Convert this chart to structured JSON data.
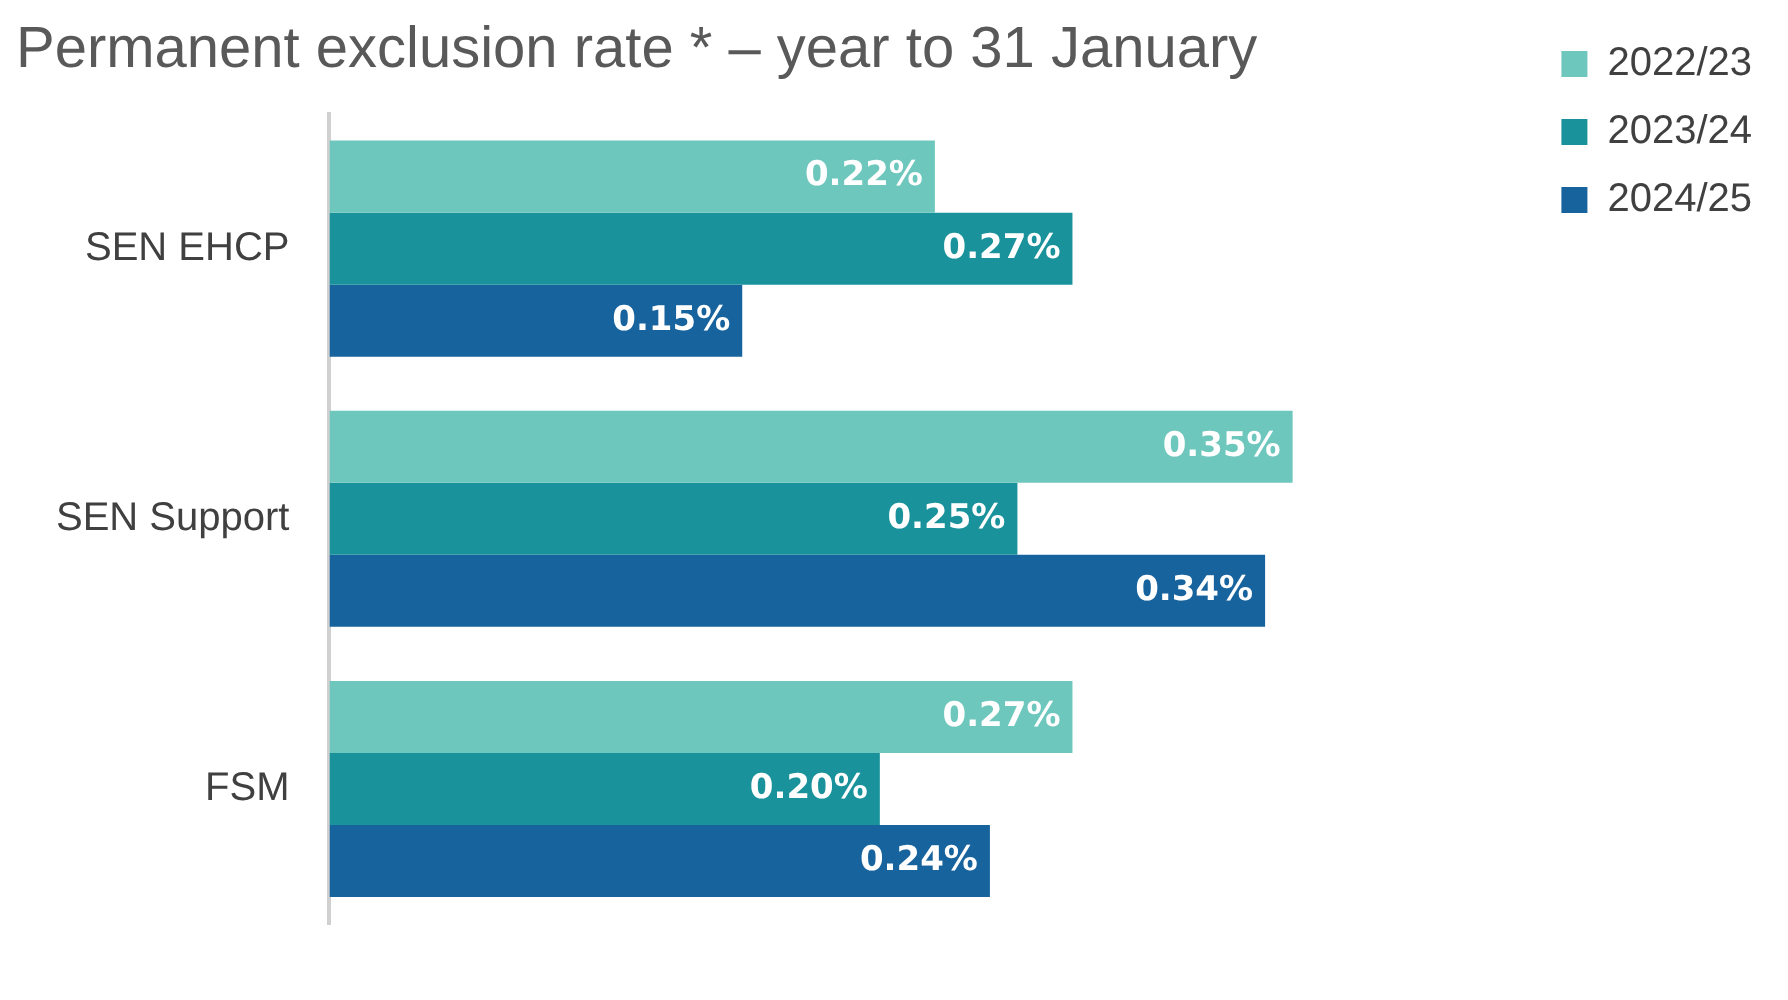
{
  "chart_data": {
    "type": "bar",
    "orientation": "horizontal",
    "title": "Permanent exclusion rate * – year to 31 January",
    "categories": [
      "SEN EHCP",
      "SEN Support",
      "FSM"
    ],
    "series": [
      {
        "name": "2022/23",
        "color": "#6dc7bc",
        "values": [
          0.22,
          0.35,
          0.27
        ],
        "value_labels": [
          "0.22%",
          "0.35%",
          "0.27%"
        ]
      },
      {
        "name": "2023/24",
        "color": "#1a929b",
        "values": [
          0.27,
          0.25,
          0.2
        ],
        "value_labels": [
          "0.27%",
          "0.25%",
          "0.20%"
        ]
      },
      {
        "name": "2024/25",
        "color": "#17639e",
        "values": [
          0.15,
          0.34,
          0.24
        ],
        "value_labels": [
          "0.15%",
          "0.34%",
          "0.24%"
        ]
      }
    ],
    "legend": "top right"
  }
}
